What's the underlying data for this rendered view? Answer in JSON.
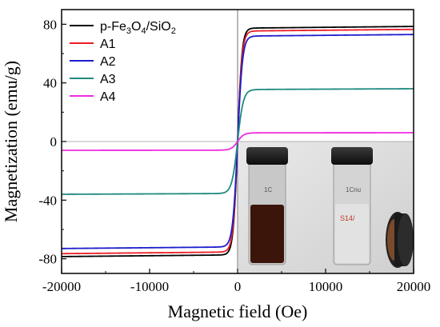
{
  "chart_data": {
    "type": "line",
    "xlabel": "Magnetic field (Oe)",
    "ylabel": "Magnetization (emu/g)",
    "xlim": [
      -20000,
      20000
    ],
    "ylim": [
      -90,
      90
    ],
    "x_ticks": [
      -20000,
      -10000,
      0,
      10000,
      20000
    ],
    "x_tick_labels": [
      "-20000",
      "-10000",
      "0",
      "10000",
      "20000"
    ],
    "y_ticks": [
      -80,
      -40,
      0,
      40,
      80
    ],
    "y_tick_labels": [
      "-80",
      "-40",
      "0",
      "40",
      "80"
    ],
    "reference_lines": {
      "x": 0,
      "y": 0
    },
    "legend_position": "top-left",
    "series": [
      {
        "name": "p-Fe3O4/SiO2",
        "color": "#000000",
        "ms": 78.5,
        "h0": 500
      },
      {
        "name": "A1",
        "color": "#ee1c24",
        "ms": 76.5,
        "h0": 520
      },
      {
        "name": "A2",
        "color": "#1c1ccc",
        "ms": 73.0,
        "h0": 560
      },
      {
        "name": "A3",
        "color": "#1f8a80",
        "ms": 36.0,
        "h0": 650
      },
      {
        "name": "A4",
        "color": "#ee2ce0",
        "ms": 6.0,
        "h0": 700
      }
    ],
    "legend_label_parts": [
      [
        {
          "t": "p-Fe",
          "s": 0
        },
        {
          "t": "3",
          "s": 1
        },
        {
          "t": "O",
          "s": 0
        },
        {
          "t": "4",
          "s": 1
        },
        {
          "t": "/SiO",
          "s": 0
        },
        {
          "t": "2",
          "s": 1
        }
      ],
      [
        {
          "t": "A1",
          "s": 0
        }
      ],
      [
        {
          "t": "A2",
          "s": 0
        }
      ],
      [
        {
          "t": "A3",
          "s": 0
        }
      ],
      [
        {
          "t": "A4",
          "s": 0
        }
      ]
    ],
    "inset_photo": {
      "vial_labels": [
        "1C",
        "1Cnu",
        "S14/"
      ]
    }
  }
}
